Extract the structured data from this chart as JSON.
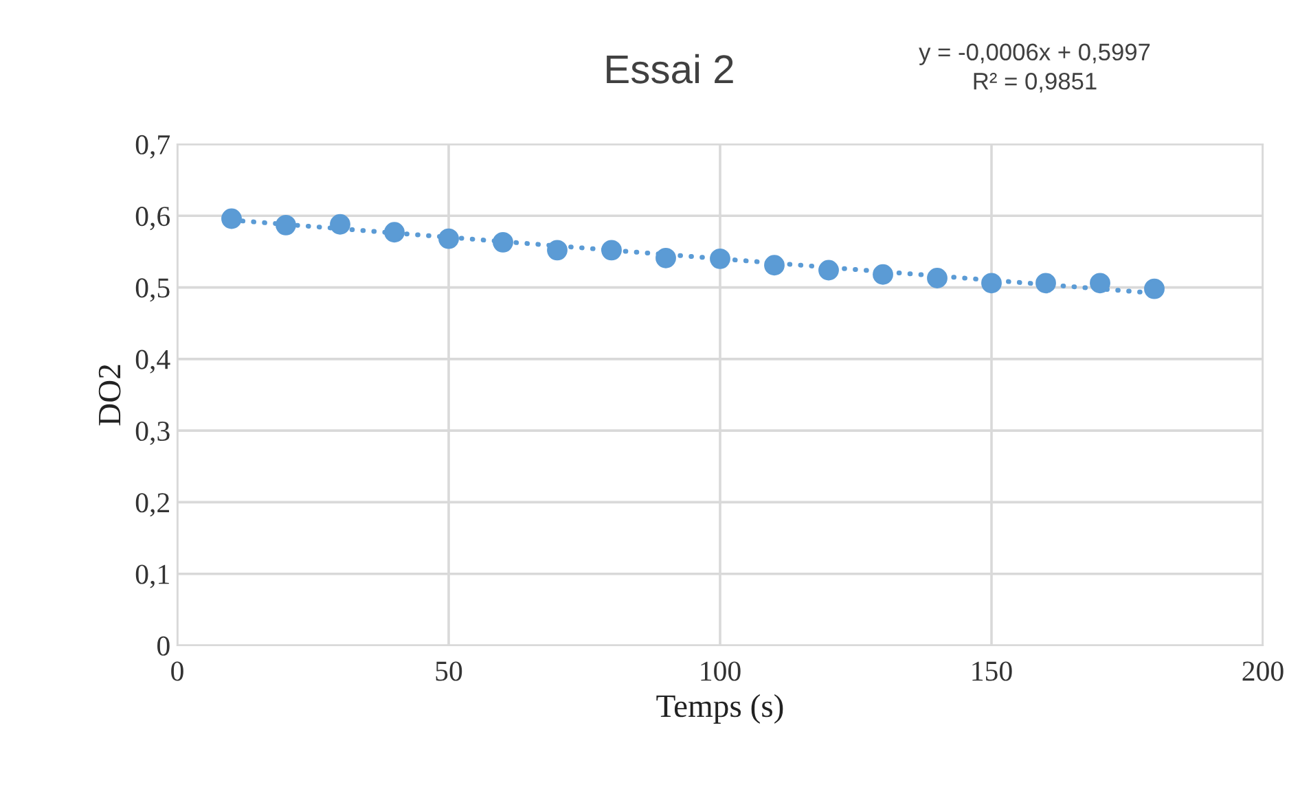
{
  "chart_data": {
    "type": "scatter",
    "title": "Essai 2",
    "xlabel": "Temps (s)",
    "ylabel": "DO2",
    "annotations": [
      "y = -0,0006x + 0,5997\nR² = 0,9851"
    ],
    "series": [
      {
        "color": "#5b9bd5",
        "marker": "circle",
        "x": [
          10,
          20,
          30,
          40,
          50,
          60,
          70,
          80,
          90,
          100,
          110,
          120,
          130,
          140,
          150,
          160,
          170,
          180
        ],
        "values": [
          0.596,
          0.587,
          0.588,
          0.577,
          0.568,
          0.563,
          0.552,
          0.552,
          0.541,
          0.54,
          0.531,
          0.524,
          0.518,
          0.513,
          0.506,
          0.506,
          0.506,
          0.498
        ]
      },
      {
        "type": "line",
        "color": "#5b9bd5",
        "line_style": "dotted",
        "marker": "none",
        "x": [
          10,
          180
        ],
        "values": [
          0.594,
          0.492
        ]
      }
    ],
    "xlim": [
      0,
      200
    ],
    "xticks": [
      0,
      50,
      100,
      150,
      200
    ],
    "ylim": [
      0,
      0.7
    ],
    "yticks": [
      0,
      {
        "value": 0.1,
        "label": "0,1"
      },
      {
        "value": 0.2,
        "label": "0,2"
      },
      {
        "value": 0.3,
        "label": "0,3"
      },
      {
        "value": 0.4,
        "label": "0,4"
      },
      {
        "value": 0.5,
        "label": "0,5"
      },
      {
        "value": 0.6,
        "label": "0,6"
      },
      {
        "value": 0.7,
        "label": "0,7"
      }
    ],
    "grid": true
  }
}
